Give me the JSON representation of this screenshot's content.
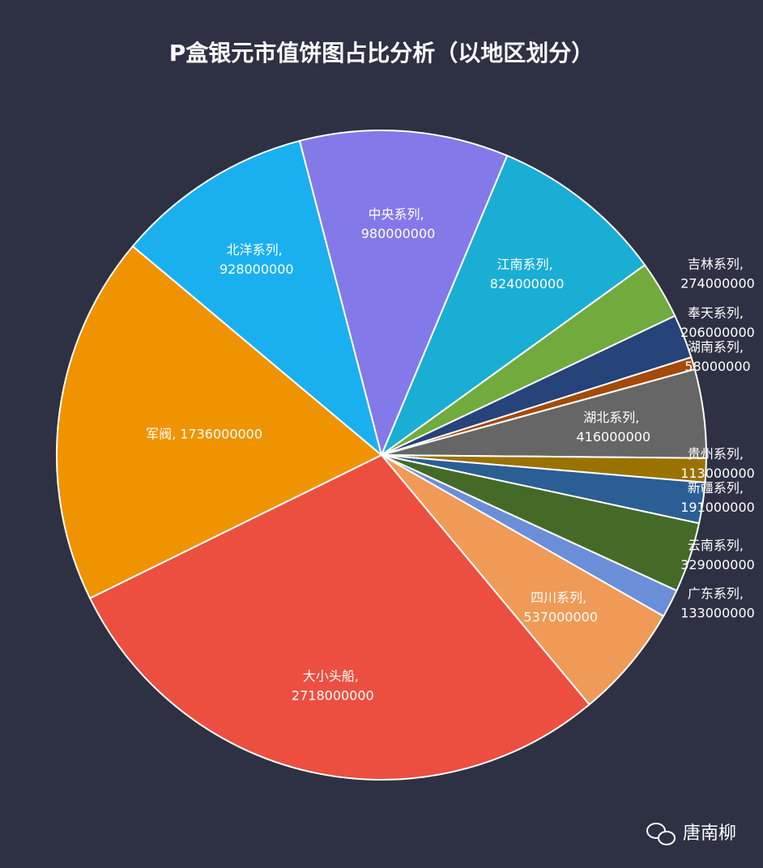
{
  "chart_data": {
    "type": "pie",
    "title": "P盒银元市值饼图占比分析（以地区划分）",
    "values": [
      980000000,
      824000000,
      274000000,
      206000000,
      58000000,
      416000000,
      113000000,
      191000000,
      329000000,
      133000000,
      537000000,
      2718000000,
      1736000000,
      928000000
    ],
    "value_labels": [
      "中央系列, 980000000",
      "江南系列, 824000000",
      "吉林系列, 274000000",
      "奉天系列, 206000000",
      "湖南系列, 58000000",
      "湖北系列, 416000000",
      "贵州系列, 113000000",
      "新疆系列, 191000000",
      "云南系列, 329000000",
      "广东系列, 133000000",
      "四川系列, 537000000",
      "大小头船, 2718000000",
      "军阀, 1736000000",
      "北洋系列, 928000000"
    ],
    "colors": [
      "#8479e8",
      "#1aaed5",
      "#71ab3e",
      "#26437a",
      "#a44a0a",
      "#666666",
      "#9a7202",
      "#2a5e94",
      "#456a27",
      "#6a8fd8",
      "#f09a57",
      "#ec4f3f",
      "#f09300",
      "#1ab0f0"
    ]
  },
  "watermark": "唐南柳"
}
